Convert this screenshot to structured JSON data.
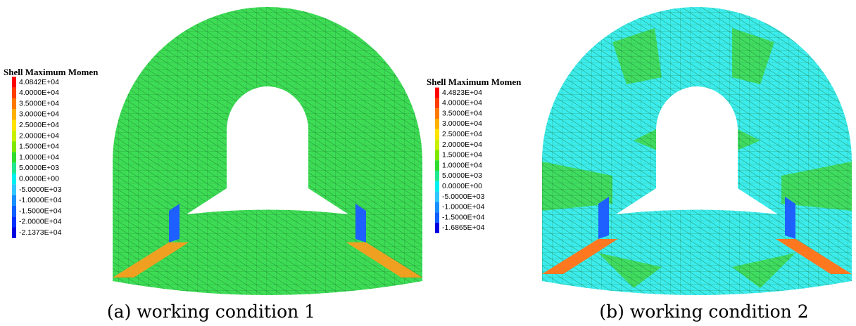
{
  "panels": [
    {
      "legend": {
        "title": "Shell Maximum Momen",
        "entries": [
          "4.0842E+04",
          "4.0000E+04",
          "3.5000E+04",
          "3.0000E+04",
          "2.5000E+04",
          "2.0000E+04",
          "1.5000E+04",
          "1.0000E+04",
          "5.0000E+03",
          "0.0000E+00",
          "-5.0000E+03",
          "-1.0000E+04",
          "-1.5000E+04",
          "-2.0000E+04",
          "-2.1373E+04"
        ],
        "colors": [
          "#ff0000",
          "#ff3c00",
          "#ff7800",
          "#ffb000",
          "#ffe400",
          "#c8f000",
          "#80e800",
          "#30dc30",
          "#20e890",
          "#00f0f0",
          "#30c8ff",
          "#1890ff",
          "#1060ff",
          "#0030ff",
          "#0000e0"
        ]
      },
      "caption": "(a) working condition 1"
    },
    {
      "legend": {
        "title": "Shell Maximum Momen",
        "entries": [
          "4.4823E+04",
          "4.0000E+04",
          "3.5000E+04",
          "3.0000E+04",
          "2.5000E+04",
          "2.0000E+04",
          "1.5000E+04",
          "1.0000E+04",
          "5.0000E+03",
          "0.0000E+00",
          "-5.0000E+03",
          "-1.0000E+04",
          "-1.5000E+04",
          "-1.6865E+04"
        ],
        "colors": [
          "#ff0000",
          "#ff3c00",
          "#ff7800",
          "#ffb000",
          "#ffe400",
          "#c8f000",
          "#80e800",
          "#30dc30",
          "#20e890",
          "#00f0f0",
          "#30c8ff",
          "#1890ff",
          "#1060ff",
          "#0000e0"
        ]
      },
      "caption": "(b) working condition 2"
    }
  ]
}
